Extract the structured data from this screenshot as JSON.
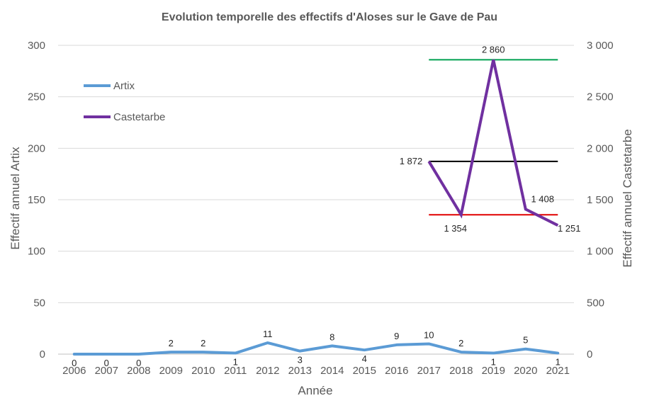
{
  "chart_data": {
    "type": "line",
    "title": "Evolution temporelle des effectifs d'Aloses sur le Gave de Pau",
    "xlabel": "Année",
    "ylabel_left": "Effectif annuel Artix",
    "ylabel_right": "Effectif annuel Castetarbe",
    "ylim_left": [
      0,
      300
    ],
    "ylim_right": [
      0,
      3000
    ],
    "yticks_left": [
      "0",
      "50",
      "100",
      "150",
      "200",
      "250",
      "300"
    ],
    "yticks_right": [
      "0",
      "500",
      "1 000",
      "1 500",
      "2 000",
      "2 500",
      "3 000"
    ],
    "categories": [
      "2006",
      "2007",
      "2008",
      "2009",
      "2010",
      "2011",
      "2012",
      "2013",
      "2014",
      "2015",
      "2016",
      "2017",
      "2018",
      "2019",
      "2020",
      "2021"
    ],
    "grid": true,
    "legend_position": "top-left",
    "series": [
      {
        "name": "Artix",
        "axis": "left",
        "color": "#5B9BD5",
        "values": [
          0,
          0,
          0,
          2,
          2,
          1,
          11,
          3,
          8,
          4,
          9,
          10,
          2,
          1,
          5,
          1
        ],
        "labels": [
          "0",
          "0",
          "0",
          "2",
          "2",
          "1",
          "11",
          "3",
          "8",
          "4",
          "9",
          "10",
          "2",
          "1",
          "5",
          "1"
        ]
      },
      {
        "name": "Castetarbe",
        "axis": "right",
        "color": "#7030A0",
        "x": [
          "2017",
          "2018",
          "2019",
          "2020",
          "2021"
        ],
        "values": [
          1872,
          1354,
          2860,
          1408,
          1251
        ],
        "labels": [
          "1 872",
          "1 354",
          "2 860",
          "1 408",
          "1 251"
        ]
      }
    ],
    "reference_lines": [
      {
        "axis": "right",
        "value": 2860,
        "x_from": "2017",
        "x_to": "2021",
        "color": "#00A050"
      },
      {
        "axis": "right",
        "value": 1872,
        "x_from": "2017",
        "x_to": "2021",
        "color": "#000000"
      },
      {
        "axis": "right",
        "value": 1354,
        "x_from": "2017",
        "x_to": "2021",
        "color": "#E00000"
      }
    ]
  }
}
